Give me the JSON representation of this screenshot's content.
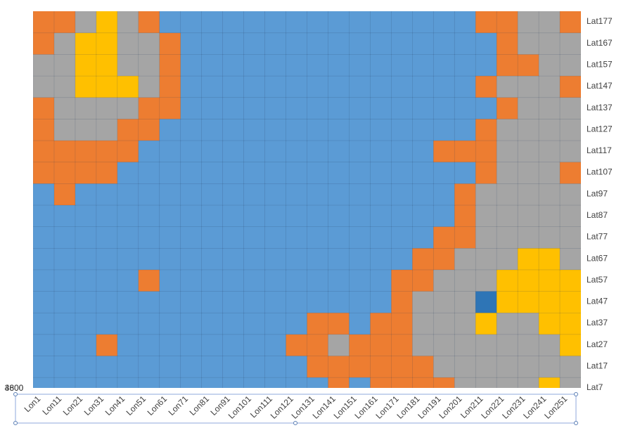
{
  "chart_data": {
    "type": "surface",
    "categories": [
      "Lon1",
      "Lon11",
      "Lon21",
      "Lon31",
      "Lon41",
      "Lon51",
      "Lon61",
      "Lon71",
      "Lon81",
      "Lon91",
      "Lon101",
      "Lon111",
      "Lon121",
      "Lon131",
      "Lon141",
      "Lon151",
      "Lon161",
      "Lon171",
      "Lon181",
      "Lon191",
      "Lon201",
      "Lon211",
      "Lon221",
      "Lon231",
      "Lon241",
      "Lon251"
    ],
    "zlim": [
      3800,
      4600
    ],
    "zticks": [
      3800,
      4600
    ],
    "band_colors": [
      "#5b9bd5",
      "#ed7d31",
      "#a5a5a5",
      "#ffc000",
      "#2e75b6"
    ],
    "series": [
      {
        "name": "Lat7",
        "values": [
          3900,
          3900,
          3950,
          3900,
          3900,
          3900,
          3900,
          3900,
          3900,
          3900,
          3900,
          3900,
          3900,
          3950,
          4000,
          3950,
          4050,
          4100,
          4100,
          4150,
          4200,
          4250,
          4200,
          4300,
          4450,
          4300
        ]
      },
      {
        "name": "Lat17",
        "values": [
          3900,
          3900,
          3900,
          3900,
          3900,
          3850,
          3900,
          3900,
          3900,
          3900,
          3850,
          3900,
          3950,
          4050,
          4150,
          4100,
          4050,
          4100,
          4150,
          4200,
          4250,
          4300,
          4250,
          4300,
          4250,
          4350
        ]
      },
      {
        "name": "Lat27",
        "values": [
          3900,
          3850,
          3900,
          4050,
          3900,
          3900,
          3900,
          3900,
          3850,
          3900,
          3900,
          3900,
          4100,
          4150,
          4200,
          4150,
          4100,
          4150,
          4200,
          4250,
          4300,
          4300,
          4250,
          4350,
          4300,
          4400
        ]
      },
      {
        "name": "Lat37",
        "values": [
          3900,
          3900,
          3900,
          3900,
          3850,
          3900,
          3900,
          3900,
          3900,
          3900,
          3900,
          3900,
          3950,
          4100,
          4050,
          3950,
          4000,
          4150,
          4200,
          4250,
          4300,
          4400,
          4350,
          4300,
          4450,
          4400
        ]
      },
      {
        "name": "Lat47",
        "values": [
          3900,
          3900,
          3850,
          3900,
          3900,
          3900,
          3900,
          3900,
          3900,
          3900,
          3850,
          3900,
          3900,
          3900,
          3900,
          3900,
          3900,
          4100,
          4200,
          4300,
          4350,
          4700,
          4450,
          4400,
          4500,
          4450
        ]
      },
      {
        "name": "Lat57",
        "values": [
          3850,
          3900,
          3900,
          3900,
          3900,
          4050,
          3900,
          3900,
          3850,
          3900,
          3900,
          3900,
          3900,
          3900,
          3900,
          3900,
          3900,
          4050,
          4150,
          4250,
          4300,
          4350,
          4450,
          4500,
          4450,
          4400
        ]
      },
      {
        "name": "Lat67",
        "values": [
          3900,
          3900,
          3900,
          3850,
          3900,
          3900,
          3900,
          3900,
          3900,
          3850,
          3900,
          3900,
          3900,
          3900,
          3850,
          3900,
          3900,
          3950,
          4100,
          4150,
          4200,
          4250,
          4350,
          4400,
          4450,
          4350
        ]
      },
      {
        "name": "Lat77",
        "values": [
          3900,
          3850,
          3900,
          3900,
          3900,
          3900,
          3850,
          3900,
          3900,
          3900,
          3900,
          3850,
          3900,
          3900,
          3900,
          3900,
          3900,
          3900,
          3950,
          4050,
          4150,
          4250,
          4300,
          4350,
          4300,
          4250
        ]
      },
      {
        "name": "Lat87",
        "values": [
          3900,
          3900,
          3900,
          3850,
          3900,
          3900,
          3900,
          3900,
          3850,
          3900,
          3900,
          3900,
          3900,
          3850,
          3900,
          3900,
          3900,
          3900,
          3900,
          3900,
          4100,
          4250,
          4300,
          4350,
          4300,
          4250
        ]
      },
      {
        "name": "Lat97",
        "values": [
          3950,
          4050,
          3950,
          3900,
          3900,
          3850,
          3900,
          3900,
          3900,
          3850,
          3900,
          3900,
          3900,
          3900,
          3900,
          3850,
          3900,
          3900,
          3900,
          3900,
          4100,
          4200,
          4300,
          4350,
          4300,
          4200
        ]
      },
      {
        "name": "Lat107",
        "values": [
          4050,
          4150,
          4100,
          4050,
          3950,
          3900,
          3900,
          3850,
          3900,
          3900,
          3900,
          3900,
          3850,
          3900,
          3900,
          3900,
          3900,
          3900,
          3900,
          3900,
          3950,
          4150,
          4200,
          4300,
          4250,
          4150
        ]
      },
      {
        "name": "Lat117",
        "values": [
          4100,
          4150,
          4100,
          4150,
          4050,
          3950,
          3900,
          3900,
          3900,
          3900,
          3850,
          3900,
          3900,
          3900,
          3900,
          3900,
          3850,
          3900,
          3900,
          4050,
          4000,
          4150,
          4250,
          4300,
          4300,
          4200
        ]
      },
      {
        "name": "Lat127",
        "values": [
          4100,
          4200,
          4250,
          4200,
          4150,
          4050,
          3950,
          3900,
          3850,
          3900,
          3900,
          3900,
          3900,
          3900,
          3850,
          3900,
          3900,
          3900,
          3900,
          3900,
          3950,
          4050,
          4200,
          4300,
          4250,
          4200
        ]
      },
      {
        "name": "Lat137",
        "values": [
          4150,
          4300,
          4350,
          4300,
          4250,
          4150,
          4050,
          3900,
          3900,
          3900,
          3850,
          3900,
          3900,
          3850,
          3900,
          3900,
          3900,
          3900,
          3850,
          3900,
          3900,
          3950,
          4150,
          4300,
          4300,
          4200
        ]
      },
      {
        "name": "Lat147",
        "values": [
          4200,
          4350,
          4450,
          4500,
          4400,
          4250,
          4100,
          3950,
          3900,
          3900,
          3900,
          3850,
          3900,
          3900,
          3900,
          3900,
          3850,
          3900,
          3900,
          3900,
          3900,
          4100,
          4200,
          4250,
          4300,
          4150
        ]
      },
      {
        "name": "Lat157",
        "values": [
          4200,
          4300,
          4500,
          4450,
          4350,
          4200,
          4050,
          3900,
          3900,
          3850,
          3900,
          3900,
          3900,
          3900,
          3850,
          3900,
          3900,
          3900,
          3900,
          3850,
          3900,
          3900,
          4000,
          4150,
          4300,
          4250
        ]
      },
      {
        "name": "Lat167",
        "values": [
          4150,
          4300,
          4450,
          4500,
          4300,
          4200,
          4000,
          3900,
          3900,
          3900,
          3850,
          3900,
          3900,
          3850,
          3900,
          3900,
          3900,
          3850,
          3900,
          3900,
          3900,
          3950,
          4150,
          4250,
          4300,
          4200
        ]
      },
      {
        "name": "Lat177",
        "values": [
          4100,
          4150,
          4300,
          4450,
          4200,
          4100,
          3950,
          3900,
          3900,
          3850,
          3900,
          3900,
          3850,
          3900,
          3900,
          3900,
          3850,
          3900,
          3900,
          3900,
          3950,
          4100,
          4150,
          4200,
          4300,
          4150
        ]
      }
    ]
  }
}
